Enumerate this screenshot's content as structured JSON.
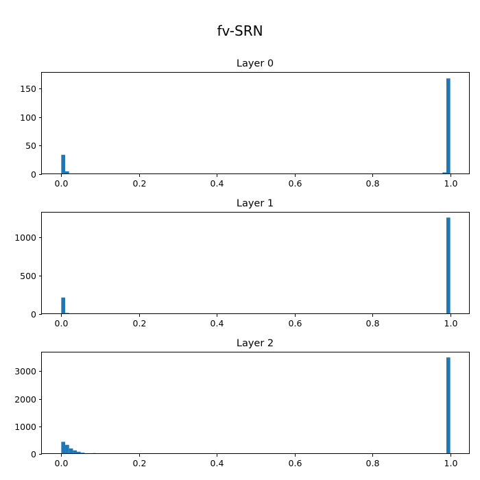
{
  "figure": {
    "title": "fv-SRN"
  },
  "chart_data": [
    {
      "type": "bar",
      "title": "Layer 0",
      "xlabel": "",
      "ylabel": "",
      "xlim": [
        -0.05,
        1.05
      ],
      "ylim": [
        0,
        178
      ],
      "xticks": [
        0.0,
        0.2,
        0.4,
        0.6,
        0.8,
        1.0
      ],
      "xtick_labels": [
        "0.0",
        "0.2",
        "0.4",
        "0.6",
        "0.8",
        "1.0"
      ],
      "yticks": [
        0,
        50,
        100,
        150
      ],
      "ytick_labels": [
        "0",
        "50",
        "100",
        "150"
      ],
      "bin_width": 0.01,
      "color": "#1f77b4",
      "bars": [
        {
          "x": 0.0,
          "value": 34
        },
        {
          "x": 0.01,
          "value": 5
        },
        {
          "x": 0.92,
          "value": 1
        },
        {
          "x": 0.96,
          "value": 1
        },
        {
          "x": 0.97,
          "value": 1
        },
        {
          "x": 0.98,
          "value": 3
        },
        {
          "x": 0.99,
          "value": 168
        }
      ]
    },
    {
      "type": "bar",
      "title": "Layer 1",
      "xlabel": "",
      "ylabel": "",
      "xlim": [
        -0.05,
        1.05
      ],
      "ylim": [
        0,
        1320
      ],
      "xticks": [
        0.0,
        0.2,
        0.4,
        0.6,
        0.8,
        1.0
      ],
      "xtick_labels": [
        "0.0",
        "0.2",
        "0.4",
        "0.6",
        "0.8",
        "1.0"
      ],
      "yticks": [
        0,
        500,
        1000
      ],
      "ytick_labels": [
        "0",
        "500",
        "1000"
      ],
      "bin_width": 0.01,
      "color": "#1f77b4",
      "bars": [
        {
          "x": 0.0,
          "value": 215
        },
        {
          "x": 0.01,
          "value": 15
        },
        {
          "x": 0.02,
          "value": 8
        },
        {
          "x": 0.99,
          "value": 1255
        }
      ]
    },
    {
      "type": "bar",
      "title": "Layer 2",
      "xlabel": "",
      "ylabel": "",
      "xlim": [
        -0.05,
        1.05
      ],
      "ylim": [
        0,
        3680
      ],
      "xticks": [
        0.0,
        0.2,
        0.4,
        0.6,
        0.8,
        1.0
      ],
      "xtick_labels": [
        "0.0",
        "0.2",
        "0.4",
        "0.6",
        "0.8",
        "1.0"
      ],
      "yticks": [
        0,
        1000,
        2000,
        3000
      ],
      "ytick_labels": [
        "0",
        "1000",
        "2000",
        "3000"
      ],
      "bin_width": 0.01,
      "color": "#1f77b4",
      "bars": [
        {
          "x": 0.0,
          "value": 440
        },
        {
          "x": 0.01,
          "value": 330
        },
        {
          "x": 0.02,
          "value": 200
        },
        {
          "x": 0.03,
          "value": 130
        },
        {
          "x": 0.04,
          "value": 80
        },
        {
          "x": 0.05,
          "value": 45
        },
        {
          "x": 0.06,
          "value": 25
        },
        {
          "x": 0.07,
          "value": 10
        },
        {
          "x": 0.08,
          "value": 30
        },
        {
          "x": 0.09,
          "value": 5
        },
        {
          "x": 0.99,
          "value": 3500
        }
      ]
    }
  ]
}
